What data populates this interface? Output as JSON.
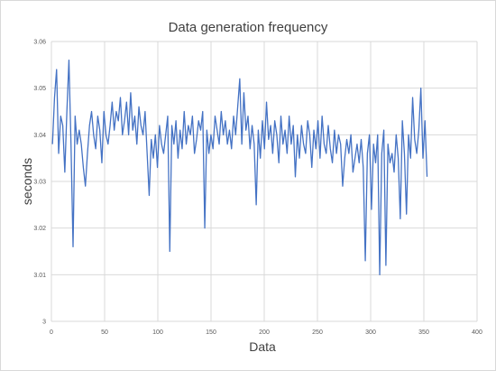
{
  "chart_data": {
    "type": "line",
    "title": "Data generation frequency",
    "xlabel": "Data",
    "ylabel": "seconds",
    "xlim": [
      0,
      400
    ],
    "ylim": [
      3,
      3.06
    ],
    "xticks": [
      "0",
      "50",
      "100",
      "150",
      "200",
      "250",
      "300",
      "350",
      "400"
    ],
    "yticks": [
      "3",
      "3.01",
      "3.02",
      "3.03",
      "3.04",
      "3.05",
      "3.06"
    ],
    "grid": true,
    "legend": "none",
    "series_color": "#4472c4",
    "series": [
      {
        "values": [
          3.038,
          3.048,
          3.054,
          3.036,
          3.044,
          3.042,
          3.032,
          3.045,
          3.056,
          3.038,
          3.016,
          3.044,
          3.038,
          3.041,
          3.038,
          3.033,
          3.029,
          3.036,
          3.042,
          3.045,
          3.04,
          3.037,
          3.044,
          3.041,
          3.034,
          3.045,
          3.04,
          3.038,
          3.042,
          3.047,
          3.041,
          3.045,
          3.043,
          3.048,
          3.04,
          3.043,
          3.047,
          3.04,
          3.049,
          3.041,
          3.044,
          3.038,
          3.046,
          3.042,
          3.04,
          3.045,
          3.036,
          3.027,
          3.039,
          3.035,
          3.04,
          3.033,
          3.042,
          3.038,
          3.036,
          3.04,
          3.044,
          3.015,
          3.042,
          3.038,
          3.043,
          3.035,
          3.041,
          3.037,
          3.045,
          3.038,
          3.042,
          3.04,
          3.044,
          3.036,
          3.039,
          3.043,
          3.041,
          3.045,
          3.02,
          3.041,
          3.036,
          3.04,
          3.037,
          3.044,
          3.041,
          3.038,
          3.045,
          3.04,
          3.043,
          3.038,
          3.041,
          3.037,
          3.044,
          3.04,
          3.046,
          3.052,
          3.038,
          3.049,
          3.041,
          3.044,
          3.037,
          3.042,
          3.038,
          3.025,
          3.041,
          3.035,
          3.043,
          3.037,
          3.047,
          3.039,
          3.042,
          3.036,
          3.043,
          3.04,
          3.034,
          3.044,
          3.038,
          3.041,
          3.036,
          3.044,
          3.038,
          3.042,
          3.031,
          3.04,
          3.035,
          3.042,
          3.038,
          3.036,
          3.043,
          3.04,
          3.033,
          3.041,
          3.037,
          3.043,
          3.035,
          3.044,
          3.038,
          3.036,
          3.042,
          3.037,
          3.034,
          3.041,
          3.036,
          3.04,
          3.038,
          3.029,
          3.035,
          3.039,
          3.036,
          3.04,
          3.032,
          3.035,
          3.038,
          3.034,
          3.039,
          3.033,
          3.013,
          3.036,
          3.04,
          3.024,
          3.038,
          3.034,
          3.04,
          3.01,
          3.036,
          3.041,
          3.012,
          3.038,
          3.034,
          3.036,
          3.032,
          3.04,
          3.035,
          3.022,
          3.043,
          3.036,
          3.023,
          3.04,
          3.035,
          3.048,
          3.039,
          3.036,
          3.041,
          3.05,
          3.035,
          3.043,
          3.031
        ],
        "x_end": 353
      }
    ]
  }
}
